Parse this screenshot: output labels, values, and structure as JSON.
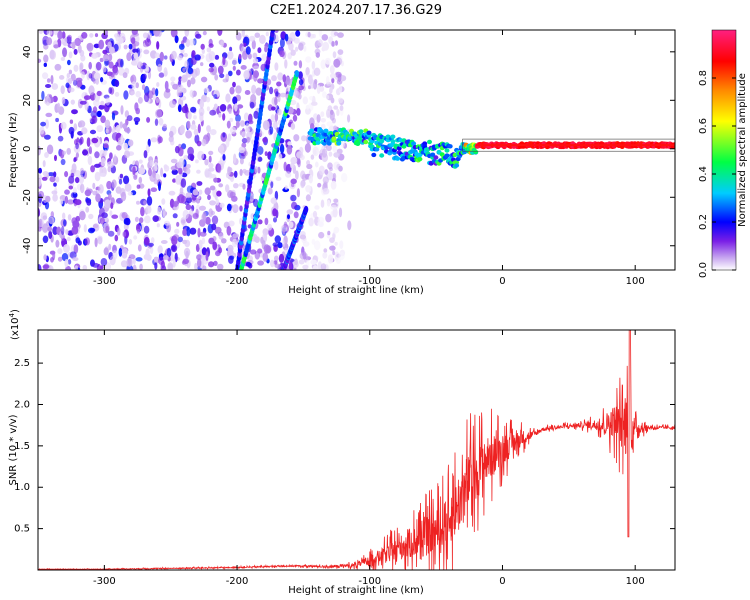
{
  "figure_title": "C2E1.2024.207.17.36.G29",
  "chart_data": [
    {
      "type": "heatmap",
      "xlabel": "Height of straight line (km)",
      "ylabel": "Frequency (Hz)",
      "xlim": [
        -350,
        130
      ],
      "ylim": [
        -50,
        49
      ],
      "x_ticks": [
        -300,
        -200,
        -100,
        0,
        100
      ],
      "y_ticks": [
        -40,
        -20,
        0,
        20,
        40
      ],
      "grid": false,
      "colorbar": {
        "label": "Normalized spectral amplitude",
        "range": [
          0,
          1
        ],
        "ticks": [
          0.0,
          0.2,
          0.4,
          0.6,
          0.8
        ],
        "colormap": [
          "#ffffff",
          "#c8a8f0",
          "#7a1fe6",
          "#0000ff",
          "#00ccff",
          "#00ff44",
          "#ffff00",
          "#ff8800",
          "#ff0000",
          "#ff2080"
        ]
      },
      "features": [
        {
          "name": "broadband noise",
          "x_range": [
            -350,
            -120
          ],
          "y_range": [
            -50,
            49
          ],
          "amplitude": 0.15
        },
        {
          "name": "streak A",
          "from": [
            -200,
            -50
          ],
          "to": [
            -173,
            49
          ],
          "amplitude": 0.2
        },
        {
          "name": "streak B",
          "from": [
            -197,
            -50
          ],
          "to": [
            -155,
            31
          ],
          "amplitude": 0.35
        },
        {
          "name": "streak C",
          "from": [
            -165,
            -50
          ],
          "to": [
            -148,
            -25
          ],
          "amplitude": 0.2
        },
        {
          "name": "signal band",
          "x_range": [
            -145,
            130
          ],
          "center_hz": 1.5,
          "amplitude": 0.9
        }
      ]
    },
    {
      "type": "line",
      "xlabel": "Height of straight line (km)",
      "ylabel": "SNR (10 * v/v)",
      "ylabel_exponent": "(x10",
      "ylabel_exponent_power": "4",
      "ylabel_exponent_close": ")",
      "xlim": [
        -350,
        130
      ],
      "ylim": [
        0,
        2.9
      ],
      "x_ticks": [
        -300,
        -200,
        -100,
        0,
        100
      ],
      "y_ticks": [
        0.5,
        1.0,
        1.5,
        2.0,
        2.5
      ],
      "grid": false,
      "series": [
        {
          "color": "#ee2222",
          "x": [
            -350,
            -300,
            -250,
            -200,
            -160,
            -130,
            -110,
            -100,
            -90,
            -80,
            -70,
            -60,
            -50,
            -40,
            -35,
            -30,
            -25,
            -20,
            -15,
            -10,
            -5,
            0,
            5,
            10,
            15,
            20,
            25,
            30,
            40,
            50,
            60,
            70,
            75,
            80,
            85,
            90,
            95,
            100,
            110,
            120,
            130
          ],
          "y": [
            0.01,
            0.01,
            0.02,
            0.03,
            0.05,
            0.04,
            0.06,
            0.12,
            0.18,
            0.25,
            0.32,
            0.38,
            0.45,
            0.6,
            0.75,
            0.9,
            1.1,
            1.2,
            1.28,
            1.35,
            1.4,
            1.45,
            1.5,
            1.55,
            1.6,
            1.62,
            1.65,
            1.7,
            1.72,
            1.74,
            1.75,
            1.76,
            1.75,
            1.78,
            1.8,
            1.75,
            1.72,
            1.72,
            1.72,
            1.72,
            1.72
          ],
          "spread": [
            0.005,
            0.005,
            0.01,
            0.01,
            0.015,
            0.02,
            0.05,
            0.1,
            0.15,
            0.22,
            0.3,
            0.38,
            0.45,
            0.5,
            0.6,
            0.65,
            0.6,
            0.55,
            0.5,
            0.45,
            0.4,
            0.3,
            0.25,
            0.2,
            0.15,
            0.1,
            0.05,
            0.04,
            0.03,
            0.04,
            0.05,
            0.1,
            0.15,
            0.25,
            0.35,
            0.5,
            0.7,
            0.15,
            0.04,
            0.03,
            0.03
          ]
        }
      ]
    }
  ]
}
